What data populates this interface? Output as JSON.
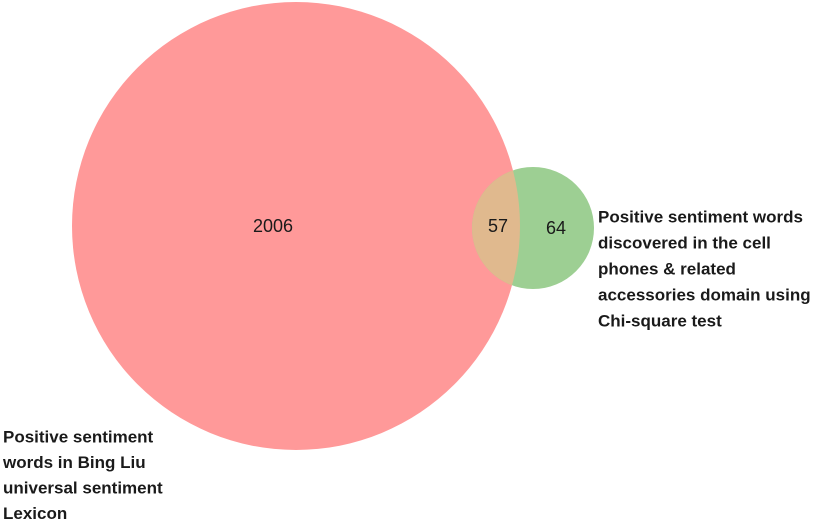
{
  "chart_data": {
    "type": "venn",
    "sets": [
      {
        "label": [
          "Positive sentiment",
          "words in Bing Liu",
          "universal sentiment",
          "Lexicon"
        ],
        "value": 2006,
        "color": "#ff9999"
      },
      {
        "label": [
          "Positive sentiment words",
          "discovered in the cell",
          "phones & related",
          "accessories domain using",
          "Chi-square test"
        ],
        "value": 64,
        "color": "#9dcf93"
      }
    ],
    "overlap": {
      "value": 57,
      "color": "#e0b98e"
    }
  }
}
